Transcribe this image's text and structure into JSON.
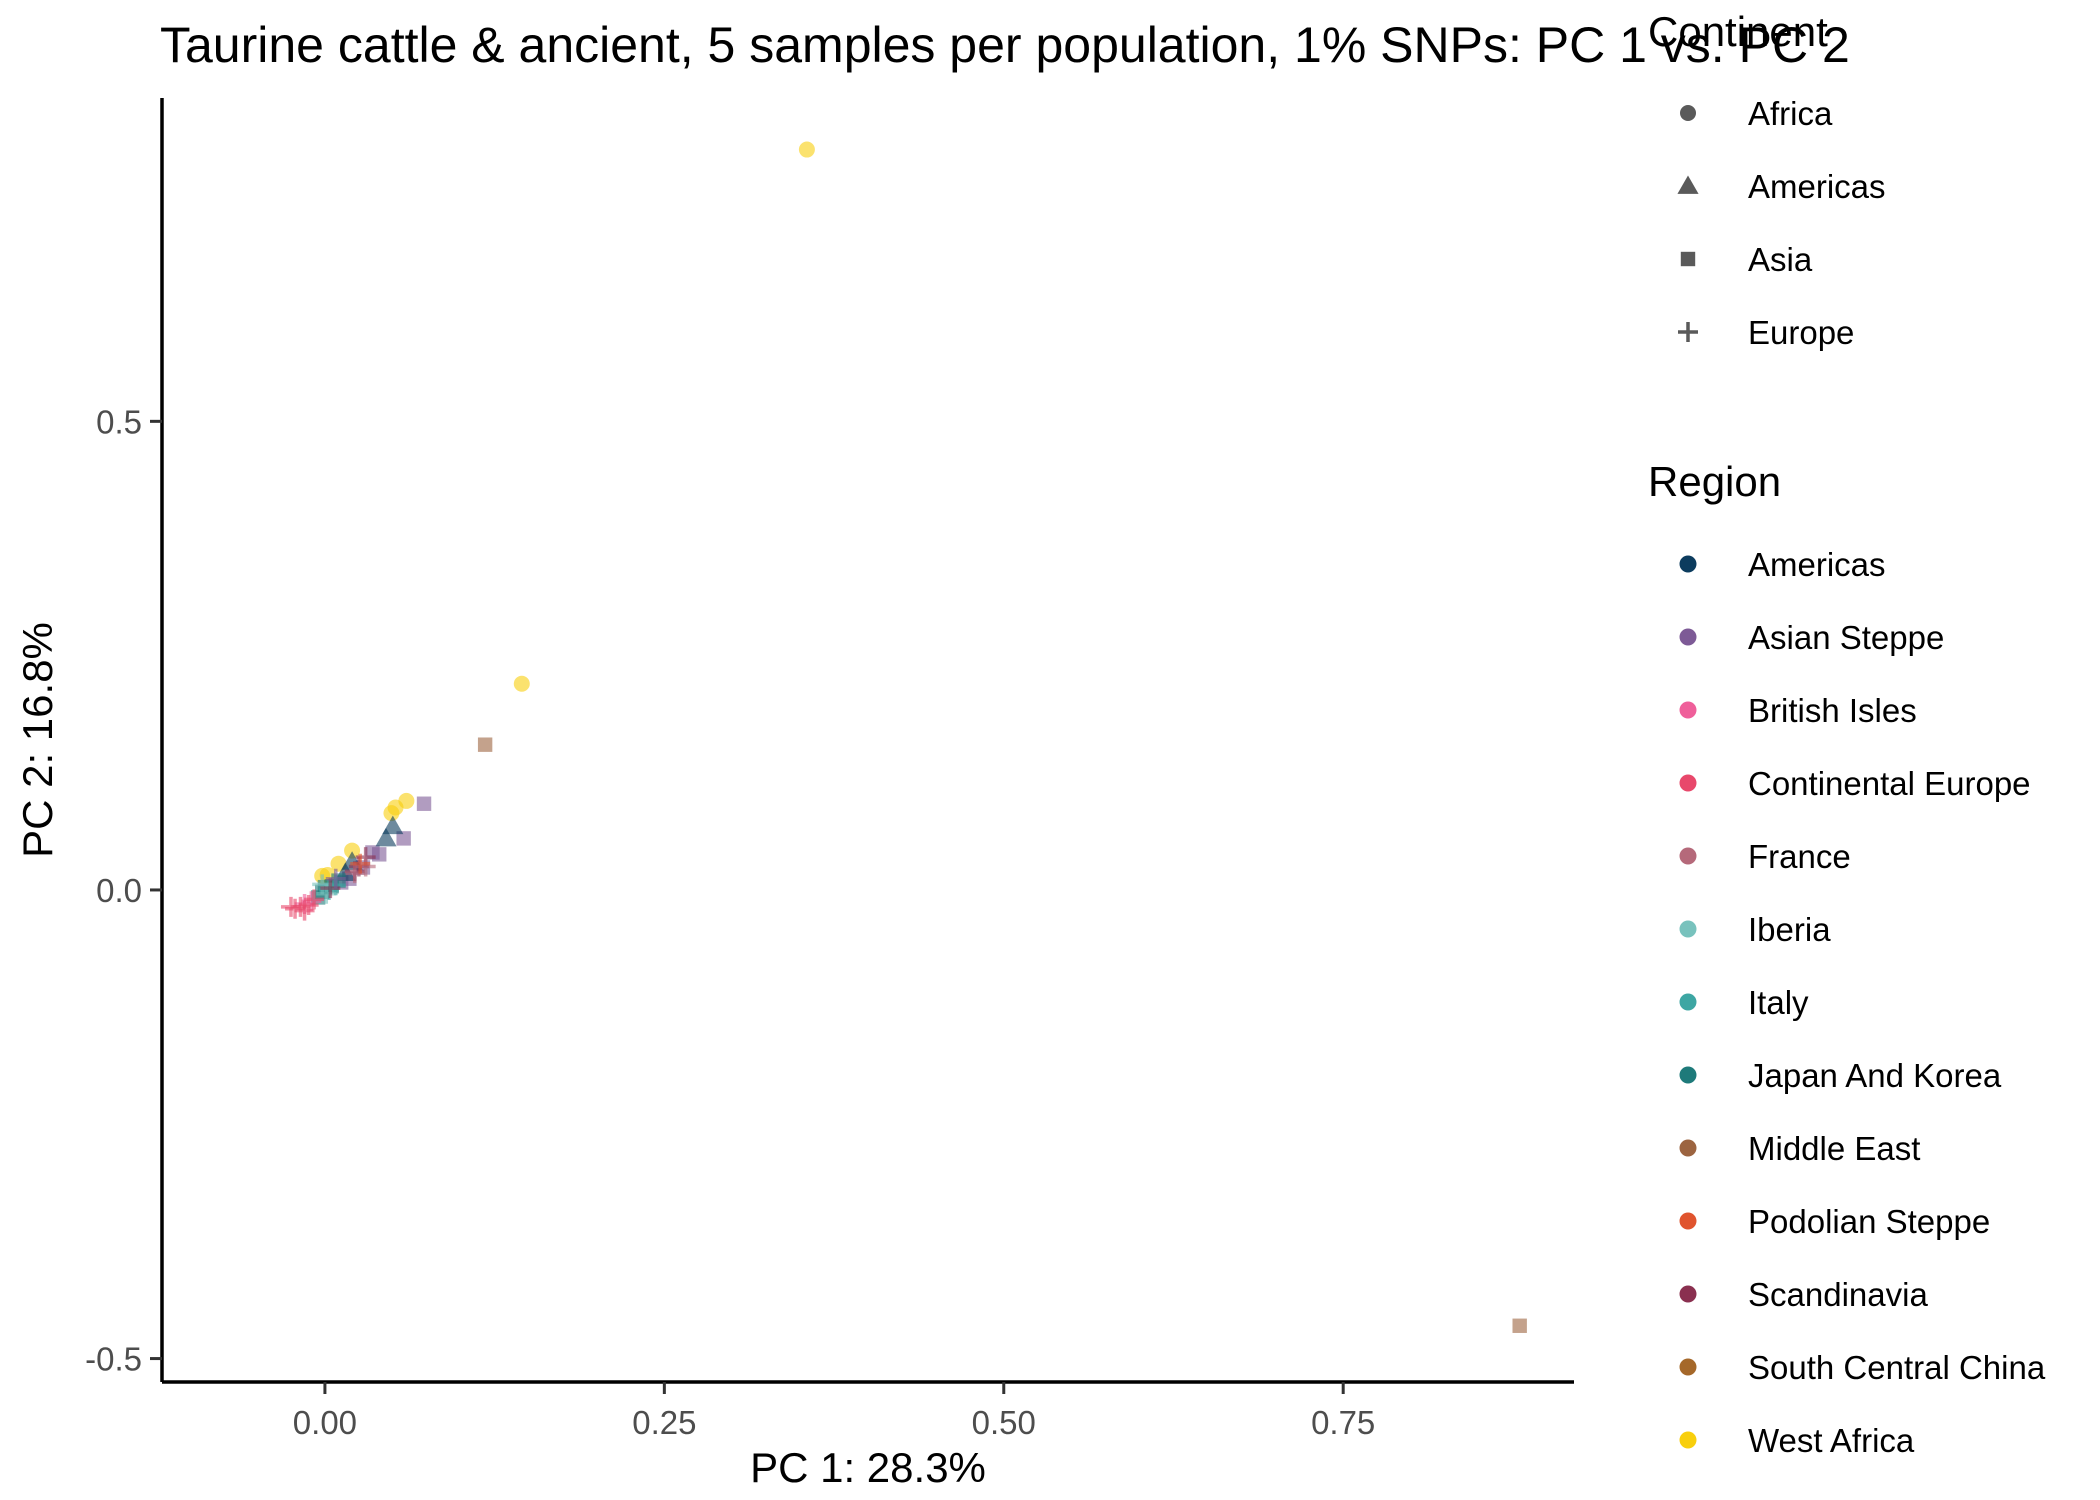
{
  "chart_data": {
    "type": "scatter",
    "title": "Taurine cattle & ancient, 5 samples per population, 1% SNPs: PC 1 vs. PC 2",
    "xlabel": "PC 1: 28.3%",
    "ylabel": "PC 2: 16.8%",
    "xlim": [
      -0.12,
      0.92
    ],
    "ylim": [
      -0.525,
      0.845
    ],
    "x_ticks": [
      0.0,
      0.25,
      0.5,
      0.75
    ],
    "x_tick_labels": [
      "0.00",
      "0.25",
      "0.50",
      "0.75"
    ],
    "y_ticks": [
      -0.5,
      0.0,
      0.5
    ],
    "y_tick_labels": [
      "-0.5",
      "0.0",
      "0.5"
    ],
    "grid": false,
    "point_opacity": 0.6,
    "legend_placement": "right",
    "legends": {
      "continent": {
        "title": "Continent",
        "entries": [
          {
            "label": "Africa",
            "shape": "circle"
          },
          {
            "label": "Americas",
            "shape": "triangle"
          },
          {
            "label": "Asia",
            "shape": "square"
          },
          {
            "label": "Europe",
            "shape": "plus"
          }
        ]
      },
      "region": {
        "title": "Region",
        "entries": [
          {
            "label": "Americas",
            "color": "#0c3c5e"
          },
          {
            "label": "Asian Steppe",
            "color": "#7d5a96"
          },
          {
            "label": "British Isles",
            "color": "#ef5f9a"
          },
          {
            "label": "Continental Europe",
            "color": "#e8486b"
          },
          {
            "label": "France",
            "color": "#b5697a"
          },
          {
            "label": "Iberia",
            "color": "#78c2bd"
          },
          {
            "label": "Italy",
            "color": "#3da6a3"
          },
          {
            "label": "Japan And Korea",
            "color": "#1e7a7a"
          },
          {
            "label": "Middle East",
            "color": "#9c6440"
          },
          {
            "label": "Podolian Steppe",
            "color": "#e0542e"
          },
          {
            "label": "Scandinavia",
            "color": "#8a3050"
          },
          {
            "label": "South Central China",
            "color": "#a5682a"
          },
          {
            "label": "West Africa",
            "color": "#f8cf0d"
          }
        ]
      }
    },
    "points": [
      {
        "x": 0.355,
        "y": 0.79,
        "shape": "circle",
        "region": "West Africa"
      },
      {
        "x": 0.145,
        "y": 0.22,
        "shape": "circle",
        "region": "West Africa"
      },
      {
        "x": 0.06,
        "y": 0.095,
        "shape": "circle",
        "region": "West Africa"
      },
      {
        "x": 0.052,
        "y": 0.088,
        "shape": "circle",
        "region": "West Africa"
      },
      {
        "x": 0.049,
        "y": 0.082,
        "shape": "circle",
        "region": "West Africa"
      },
      {
        "x": 0.02,
        "y": 0.042,
        "shape": "circle",
        "region": "West Africa"
      },
      {
        "x": 0.01,
        "y": 0.028,
        "shape": "circle",
        "region": "West Africa"
      },
      {
        "x": -0.002,
        "y": 0.015,
        "shape": "circle",
        "region": "West Africa"
      },
      {
        "x": 0.002,
        "y": 0.016,
        "shape": "circle",
        "region": "West Africa"
      },
      {
        "x": 0.88,
        "y": -0.465,
        "shape": "square",
        "region": "Middle East"
      },
      {
        "x": 0.118,
        "y": 0.155,
        "shape": "square",
        "region": "Middle East"
      },
      {
        "x": 0.073,
        "y": 0.092,
        "shape": "square",
        "region": "Asian Steppe"
      },
      {
        "x": 0.058,
        "y": 0.055,
        "shape": "square",
        "region": "Asian Steppe"
      },
      {
        "x": 0.04,
        "y": 0.038,
        "shape": "square",
        "region": "Asian Steppe"
      },
      {
        "x": 0.035,
        "y": 0.04,
        "shape": "square",
        "region": "Asian Steppe"
      },
      {
        "x": 0.028,
        "y": 0.024,
        "shape": "square",
        "region": "Asian Steppe"
      },
      {
        "x": 0.018,
        "y": 0.012,
        "shape": "square",
        "region": "Asian Steppe"
      },
      {
        "x": 0.012,
        "y": 0.008,
        "shape": "square",
        "region": "Asian Steppe"
      },
      {
        "x": 0.05,
        "y": 0.068,
        "shape": "triangle",
        "region": "Americas"
      },
      {
        "x": 0.045,
        "y": 0.055,
        "shape": "triangle",
        "region": "Americas"
      },
      {
        "x": 0.02,
        "y": 0.03,
        "shape": "triangle",
        "region": "Americas"
      },
      {
        "x": 0.015,
        "y": 0.018,
        "shape": "triangle",
        "region": "Americas"
      },
      {
        "x": 0.025,
        "y": 0.025,
        "shape": "plus",
        "region": "Scandinavia"
      },
      {
        "x": 0.03,
        "y": 0.035,
        "shape": "plus",
        "region": "Scandinavia"
      },
      {
        "x": 0.022,
        "y": 0.02,
        "shape": "plus",
        "region": "Scandinavia"
      },
      {
        "x": 0.03,
        "y": 0.025,
        "shape": "plus",
        "region": "France"
      },
      {
        "x": 0.022,
        "y": 0.018,
        "shape": "plus",
        "region": "France"
      },
      {
        "x": 0.026,
        "y": 0.028,
        "shape": "plus",
        "region": "Podolian Steppe"
      },
      {
        "x": 0.01,
        "y": 0.01,
        "shape": "square",
        "region": "Japan And Korea"
      },
      {
        "x": 0.005,
        "y": 0.004,
        "shape": "square",
        "region": "Japan And Korea"
      },
      {
        "x": -0.002,
        "y": -0.002,
        "shape": "square",
        "region": "Japan And Korea"
      },
      {
        "x": -0.005,
        "y": -0.008,
        "shape": "square",
        "region": "Japan And Korea"
      },
      {
        "x": 0.0,
        "y": 0.003,
        "shape": "square",
        "region": "Japan And Korea"
      },
      {
        "x": 0.008,
        "y": 0.005,
        "shape": "plus",
        "region": "Italy"
      },
      {
        "x": 0.003,
        "y": 0.0,
        "shape": "plus",
        "region": "Italy"
      },
      {
        "x": -0.002,
        "y": 0.006,
        "shape": "plus",
        "region": "Iberia"
      },
      {
        "x": 0.001,
        "y": -0.004,
        "shape": "plus",
        "region": "Iberia"
      },
      {
        "x": -0.01,
        "y": -0.012,
        "shape": "plus",
        "region": "British Isles"
      },
      {
        "x": -0.015,
        "y": -0.015,
        "shape": "plus",
        "region": "British Isles"
      },
      {
        "x": -0.018,
        "y": -0.018,
        "shape": "plus",
        "region": "Continental Europe"
      },
      {
        "x": -0.022,
        "y": -0.02,
        "shape": "plus",
        "region": "Continental Europe"
      },
      {
        "x": -0.015,
        "y": -0.022,
        "shape": "plus",
        "region": "Continental Europe"
      },
      {
        "x": -0.008,
        "y": -0.01,
        "shape": "plus",
        "region": "Continental Europe"
      },
      {
        "x": -0.025,
        "y": -0.018,
        "shape": "plus",
        "region": "Continental Europe"
      },
      {
        "x": -0.012,
        "y": -0.016,
        "shape": "plus",
        "region": "Continental Europe"
      },
      {
        "x": 0.004,
        "y": 0.002,
        "shape": "plus",
        "region": "Scandinavia"
      },
      {
        "x": 0.008,
        "y": 0.012,
        "shape": "plus",
        "region": "Asian Steppe"
      }
    ]
  }
}
